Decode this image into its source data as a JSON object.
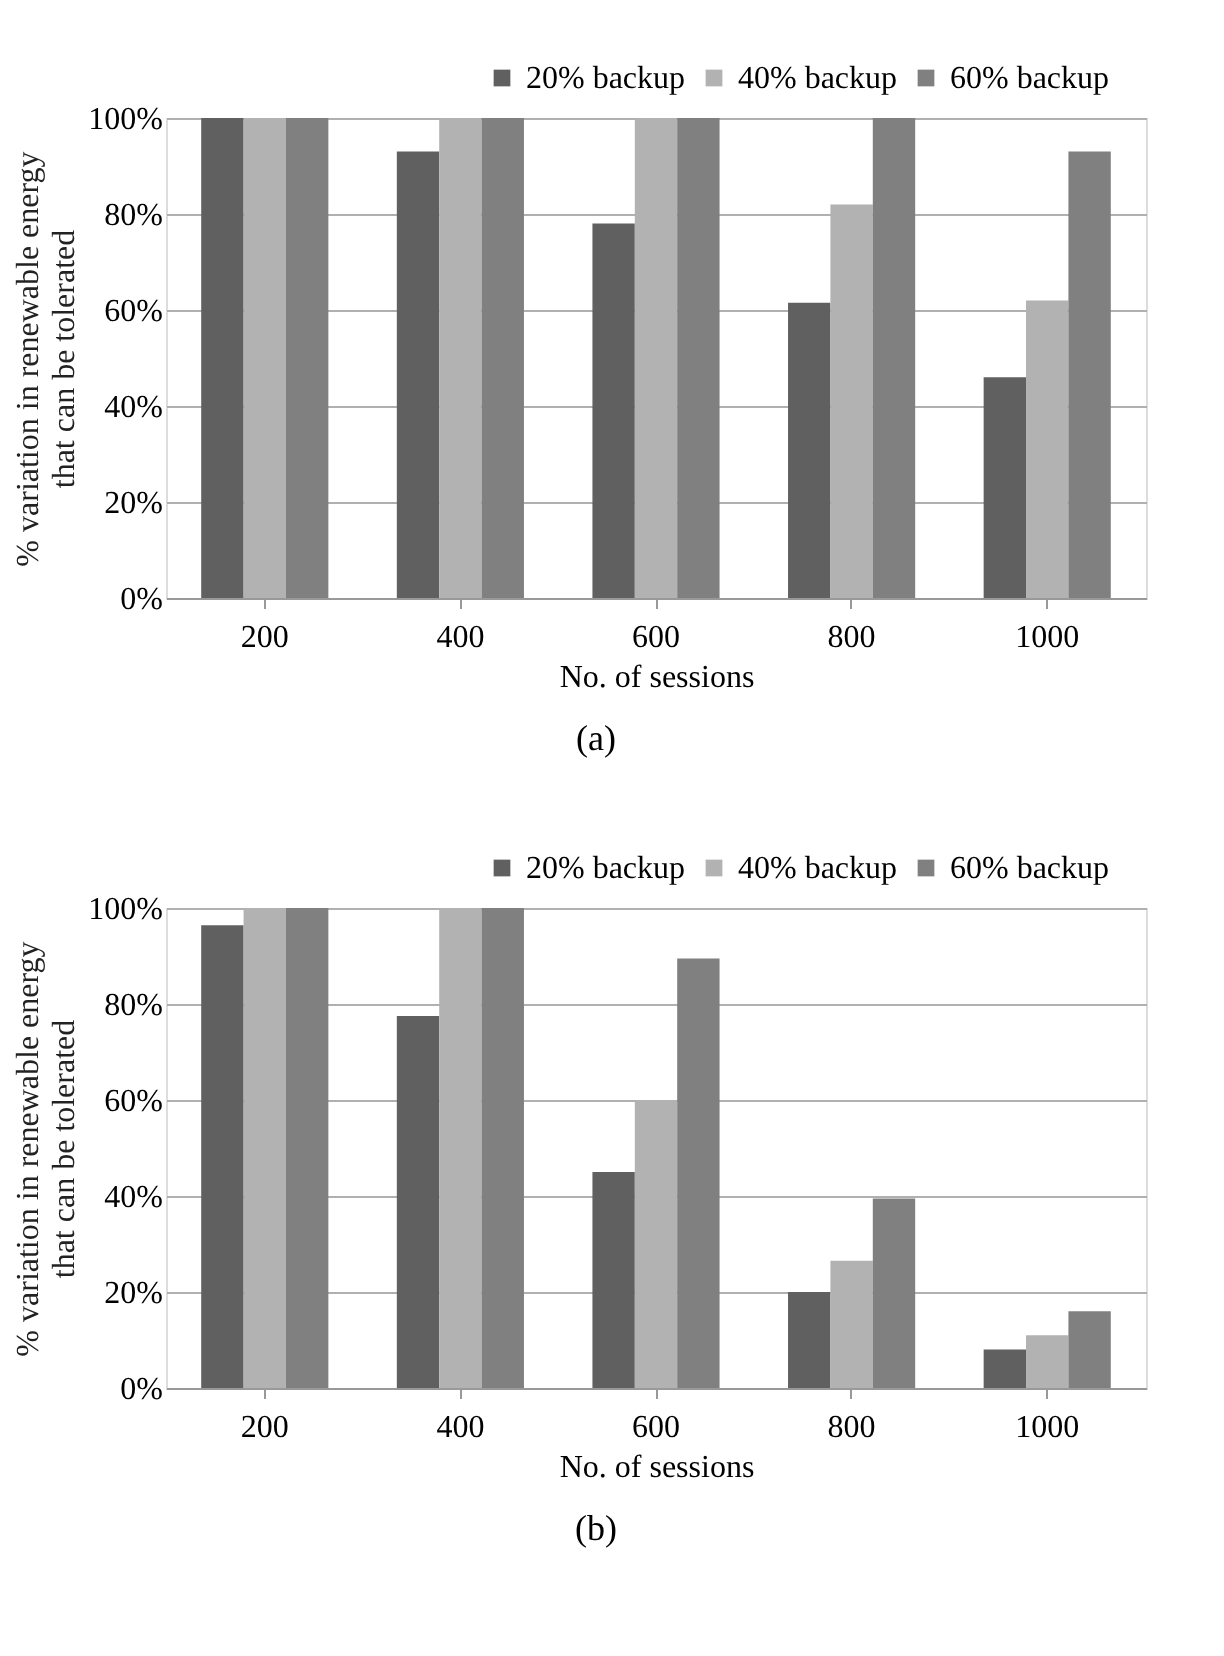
{
  "chart_data": [
    {
      "type": "bar",
      "categories": [
        "200",
        "400",
        "600",
        "800",
        "1000"
      ],
      "xlabel": "No. of sessions",
      "ylabel": "% variation in renewable energy\nthat can be tolerated",
      "ylim": [
        0,
        100
      ],
      "yticks": [
        {
          "value": 0,
          "label": "0%"
        },
        {
          "value": 20,
          "label": "20%"
        },
        {
          "value": 40,
          "label": "40%"
        },
        {
          "value": 60,
          "label": "60%"
        },
        {
          "value": 80,
          "label": "80%"
        },
        {
          "value": 100,
          "label": "100%"
        }
      ],
      "grid": "y",
      "legend": "top right",
      "annotations": [
        "(a)"
      ],
      "series": [
        {
          "name": "20% backup",
          "color": "#606060",
          "values": [
            100,
            93,
            78,
            61.5,
            46
          ]
        },
        {
          "name": "40% backup",
          "color": "#b2b2b2",
          "values": [
            100,
            100,
            100,
            82,
            62
          ]
        },
        {
          "name": "60% backup",
          "color": "#808080",
          "values": [
            100,
            100,
            100,
            100,
            93
          ]
        }
      ]
    },
    {
      "type": "bar",
      "categories": [
        "200",
        "400",
        "600",
        "800",
        "1000"
      ],
      "xlabel": "No. of sessions",
      "ylabel": "% variation in renewable energy\nthat can be tolerated",
      "ylim": [
        0,
        100
      ],
      "yticks": [
        {
          "value": 0,
          "label": "0%"
        },
        {
          "value": 20,
          "label": "20%"
        },
        {
          "value": 40,
          "label": "40%"
        },
        {
          "value": 60,
          "label": "60%"
        },
        {
          "value": 80,
          "label": "80%"
        },
        {
          "value": 100,
          "label": "100%"
        }
      ],
      "grid": "y",
      "legend": "top right",
      "annotations": [
        "(b)"
      ],
      "series": [
        {
          "name": "20% backup",
          "color": "#606060",
          "values": [
            96.4,
            77.5,
            45,
            20,
            8
          ]
        },
        {
          "name": "40% backup",
          "color": "#b2b2b2",
          "values": [
            100,
            100,
            60,
            26.5,
            11
          ]
        },
        {
          "name": "60% backup",
          "color": "#808080",
          "values": [
            100,
            100,
            89.5,
            39.5,
            16
          ]
        }
      ]
    }
  ]
}
